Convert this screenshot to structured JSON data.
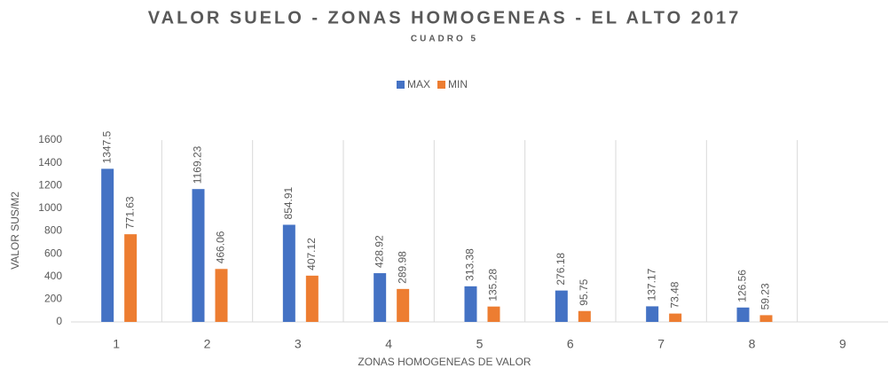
{
  "chart_data": {
    "type": "bar",
    "title": "VALOR SUELO - ZONAS HOMOGENEAS - EL ALTO 2017",
    "subtitle": "CUADRO 5",
    "x_label": "ZONAS HOMOGENEAS DE VALOR",
    "y_label": "VALOR SUS/M2",
    "categories": [
      "1",
      "2",
      "3",
      "4",
      "5",
      "6",
      "7",
      "8",
      "9"
    ],
    "series": [
      {
        "name": "MAX",
        "color": "#4472c4",
        "values": [
          1347.5,
          1169.23,
          854.91,
          428.92,
          313.38,
          276.18,
          137.17,
          126.56,
          null
        ]
      },
      {
        "name": "MIN",
        "color": "#ed7d31",
        "values": [
          771.63,
          466.06,
          407.12,
          289.98,
          135.28,
          95.75,
          73.48,
          59.23,
          null
        ]
      }
    ],
    "ylim": [
      0,
      1600
    ],
    "yticks": [
      0,
      200,
      400,
      600,
      800,
      1000,
      1200,
      1400,
      1600
    ],
    "legend": "top",
    "grid": "vertical"
  }
}
